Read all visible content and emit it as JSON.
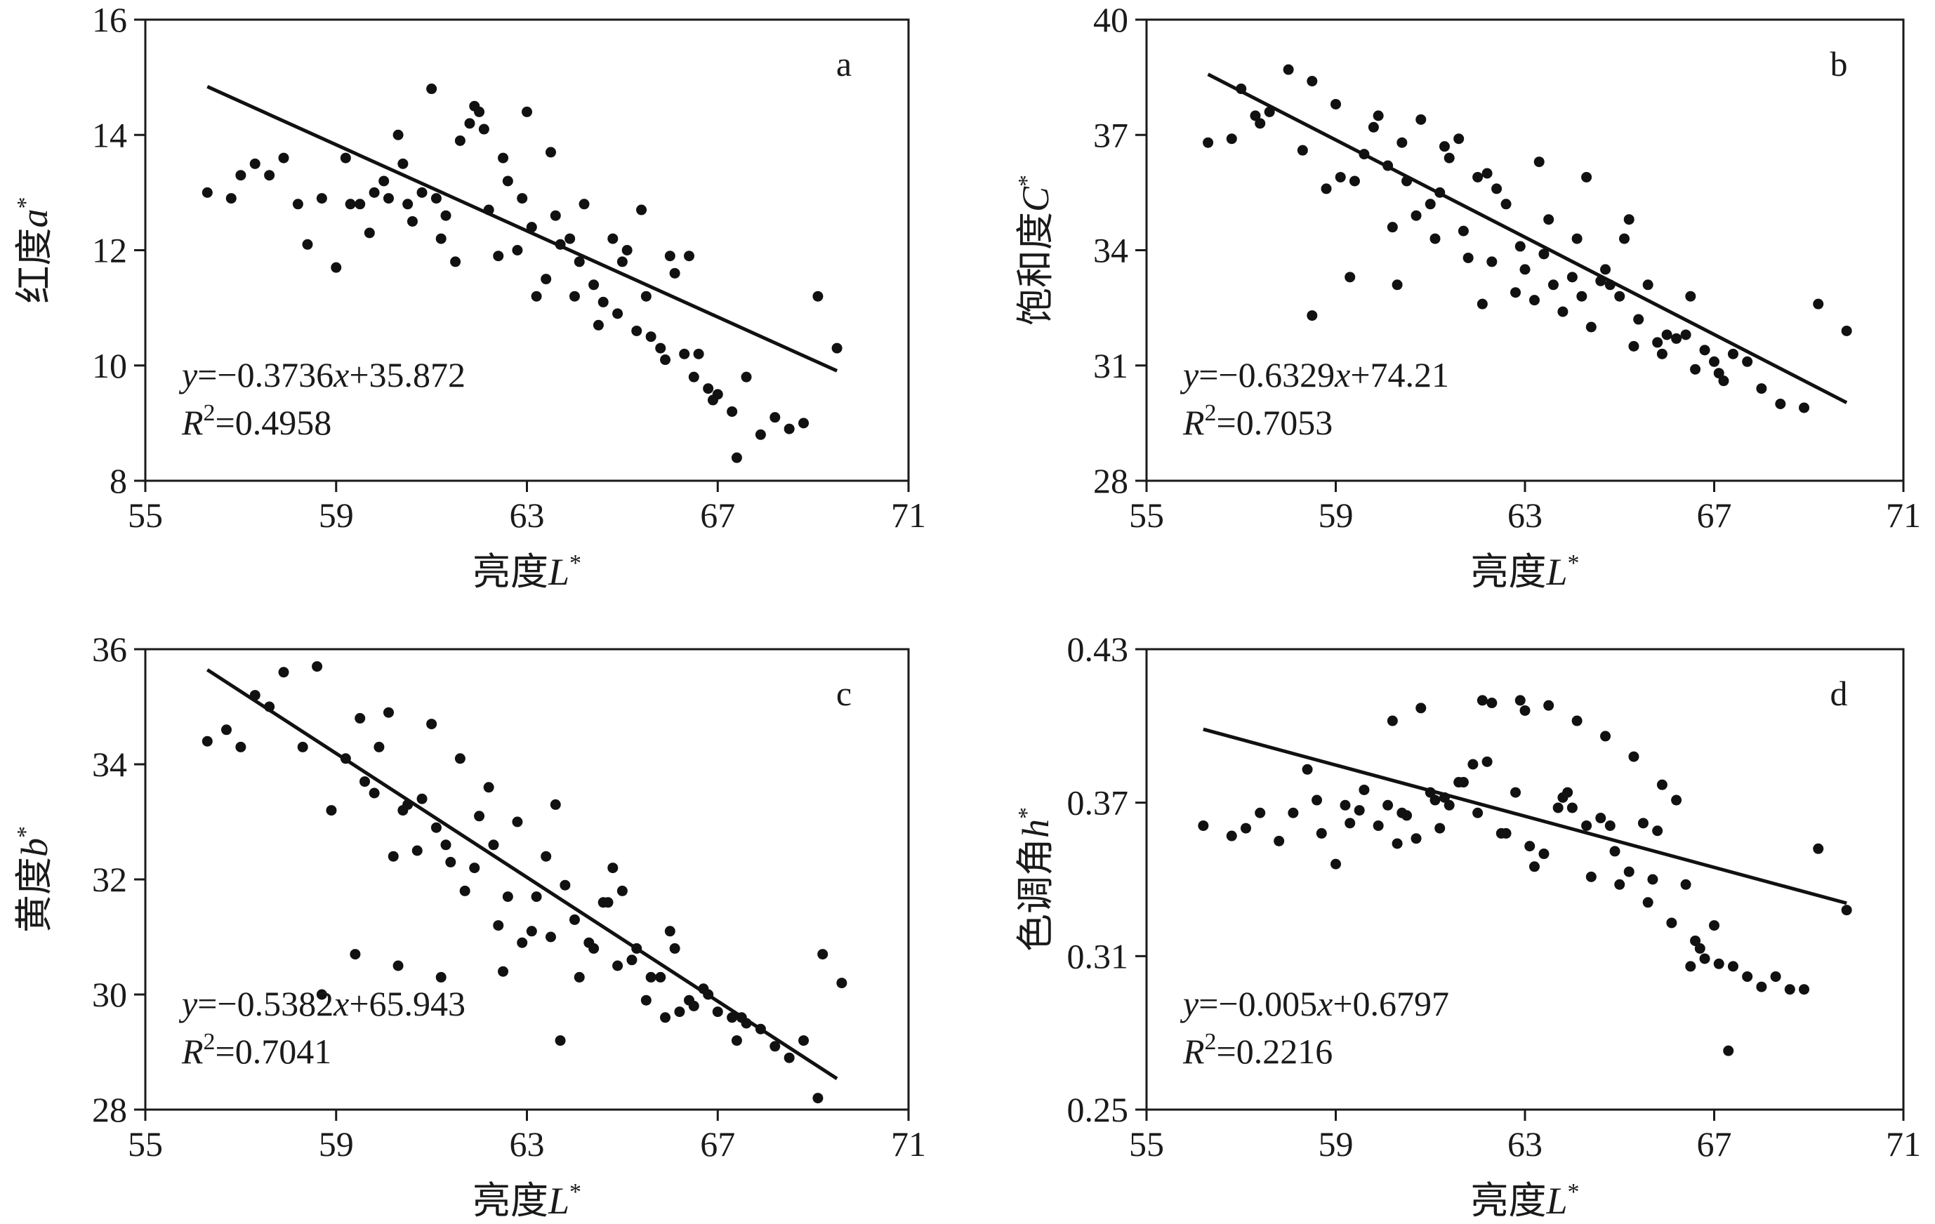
{
  "chart_data": [
    {
      "type": "scatter",
      "panel": "a",
      "xlabel": "亮度L*",
      "ylabel": "红度a*",
      "xlim": [
        55,
        71
      ],
      "ylim": [
        8,
        16
      ],
      "xticks": [
        "55",
        "59",
        "63",
        "67",
        "71"
      ],
      "yticks": [
        "8",
        "10",
        "12",
        "14",
        "16"
      ],
      "equation": "y=−0.3736x+35.872",
      "r2": "R2=0.4958",
      "fit": {
        "slope": -0.3736,
        "intercept": 35.872,
        "x": [
          56.3,
          69.5
        ]
      },
      "x": [
        56.3,
        56.8,
        57,
        57.3,
        57.6,
        57.9,
        58.2,
        58.4,
        58.7,
        59,
        59.2,
        59.5,
        59.8,
        60.1,
        60.3,
        60.5,
        60.8,
        61,
        61.3,
        61.5,
        61.8,
        62,
        62.2,
        62.5,
        62.8,
        63,
        63.2,
        63.5,
        63.7,
        64,
        64.2,
        64.5,
        64.8,
        65,
        65.3,
        65.5,
        65.8,
        66,
        66.3,
        66.5,
        66.8,
        67,
        67.3,
        67.6,
        67.9,
        68.2,
        68.5,
        68.8,
        69.1,
        69.5,
        59.3,
        60,
        60.6,
        61.1,
        61.6,
        62.1,
        62.6,
        63.1,
        63.6,
        64.1,
        64.6,
        65.1,
        65.6,
        66.1,
        66.6,
        59.7,
        60.4,
        61.2,
        61.9,
        62.4,
        62.9,
        63.4,
        63.9,
        64.4,
        64.9,
        65.4,
        65.9,
        66.4,
        66.9,
        67.4
      ],
      "y": [
        13,
        12.9,
        13.3,
        13.5,
        13.3,
        13.6,
        12.8,
        12.1,
        12.9,
        11.7,
        13.6,
        12.8,
        13,
        12.9,
        14,
        12.8,
        13,
        14.8,
        12.6,
        11.8,
        14.2,
        14.4,
        12.7,
        13.6,
        12,
        14.4,
        11.2,
        13.7,
        12.1,
        11.2,
        12.8,
        10.7,
        12.2,
        11.8,
        10.6,
        11.2,
        10.3,
        11.9,
        10.2,
        9.8,
        9.6,
        9.5,
        9.2,
        9.8,
        8.8,
        9.1,
        8.9,
        9,
        11.2,
        10.3,
        12.8,
        13.2,
        12.5,
        12.9,
        13.9,
        14.1,
        13.2,
        12.4,
        12.6,
        11.8,
        11.1,
        12,
        10.5,
        11.6,
        10.2,
        12.3,
        13.5,
        12.2,
        14.5,
        11.9,
        12.9,
        11.5,
        12.2,
        11.4,
        10.9,
        12.7,
        10.1,
        11.9,
        9.4,
        8.4
      ]
    },
    {
      "type": "scatter",
      "panel": "b",
      "xlabel": "亮度L*",
      "ylabel": "饱和度C*",
      "xlim": [
        55,
        71
      ],
      "ylim": [
        28,
        40
      ],
      "xticks": [
        "55",
        "59",
        "63",
        "67",
        "71"
      ],
      "yticks": [
        "28",
        "31",
        "34",
        "37",
        "40"
      ],
      "equation": "y=−0.6329x+74.21",
      "r2": "R2=0.7053",
      "fit": {
        "slope": -0.6329,
        "intercept": 74.21,
        "x": [
          56.3,
          69.8
        ]
      },
      "x": [
        56.3,
        56.8,
        57,
        57.3,
        57.6,
        58,
        58.3,
        58.5,
        58.8,
        59,
        59.3,
        59.6,
        59.9,
        60.2,
        60.5,
        60.8,
        61.1,
        61.4,
        61.7,
        62,
        62.3,
        62.6,
        62.9,
        63.2,
        63.5,
        63.8,
        64.1,
        64.4,
        64.7,
        65,
        65.3,
        65.6,
        65.9,
        66.2,
        66.5,
        66.8,
        67.1,
        67.4,
        67.7,
        68,
        68.4,
        68.9,
        69.2,
        69.8,
        59.4,
        60.1,
        60.7,
        61.2,
        61.8,
        62.4,
        63,
        63.6,
        64.2,
        64.8,
        65.4,
        66,
        66.6,
        67.2,
        59.8,
        60.4,
        61,
        61.6,
        62.2,
        62.8,
        63.4,
        64,
        64.6,
        65.2,
        65.8,
        66.4,
        67,
        57.4,
        58.5,
        59.1,
        60.3,
        61.3,
        62.1,
        63.3,
        64.3,
        65.1
      ],
      "y": [
        36.8,
        36.9,
        38.2,
        37.5,
        37.6,
        38.7,
        36.6,
        32.3,
        35.6,
        37.8,
        33.3,
        36.5,
        37.5,
        34.6,
        35.8,
        37.4,
        34.3,
        36.4,
        34.5,
        35.9,
        33.7,
        35.2,
        34.1,
        32.7,
        34.8,
        32.4,
        34.3,
        32,
        33.5,
        32.8,
        31.5,
        33.1,
        31.3,
        31.7,
        32.8,
        31.4,
        30.8,
        31.3,
        31.1,
        30.4,
        30,
        29.9,
        32.6,
        31.9,
        35.8,
        36.2,
        34.9,
        35.5,
        33.8,
        35.6,
        33.5,
        33.1,
        32.8,
        33.1,
        32.2,
        31.8,
        30.9,
        30.6,
        37.2,
        36.8,
        35.2,
        36.9,
        36,
        32.9,
        33.9,
        33.3,
        33.2,
        34.8,
        31.6,
        31.8,
        31.1,
        37.3,
        38.4,
        35.9,
        33.1,
        36.7,
        32.6,
        36.3,
        35.9,
        34.3
      ]
    },
    {
      "type": "scatter",
      "panel": "c",
      "xlabel": "亮度L*",
      "ylabel": "黄度b*",
      "xlim": [
        55,
        71
      ],
      "ylim": [
        28,
        36
      ],
      "xticks": [
        "55",
        "59",
        "63",
        "67",
        "71"
      ],
      "yticks": [
        "28",
        "30",
        "32",
        "34",
        "36"
      ],
      "equation": "y=−0.5382x+65.943",
      "r2": "R2=0.7041",
      "fit": {
        "slope": -0.5382,
        "intercept": 65.943,
        "x": [
          56.3,
          69.5
        ]
      },
      "x": [
        56.3,
        56.7,
        57,
        57.3,
        57.6,
        57.9,
        58.3,
        58.6,
        58.9,
        59.2,
        59.5,
        59.8,
        60.1,
        60.4,
        60.7,
        61,
        61.3,
        61.6,
        61.9,
        62.2,
        62.5,
        62.8,
        63.1,
        63.4,
        63.7,
        64,
        64.3,
        64.6,
        64.9,
        65.2,
        65.5,
        65.8,
        66.1,
        66.4,
        66.7,
        67,
        67.3,
        67.6,
        67.9,
        68.2,
        68.5,
        68.8,
        69.1,
        69.6,
        59.6,
        60.2,
        60.8,
        61.4,
        62,
        62.6,
        63.2,
        63.8,
        64.4,
        65,
        65.6,
        66.2,
        66.8,
        67.4,
        59.9,
        60.5,
        61.1,
        61.7,
        62.3,
        62.9,
        63.5,
        64.1,
        64.7,
        65.3,
        65.9,
        66.5,
        58.7,
        59.4,
        60.3,
        61.2,
        62.4,
        63.6,
        64.8,
        66,
        67.5,
        69.2
      ],
      "y": [
        34.4,
        34.6,
        34.3,
        35.2,
        35,
        35.6,
        34.3,
        35.7,
        33.2,
        34.1,
        34.8,
        33.5,
        34.9,
        33.2,
        32.5,
        34.7,
        32.6,
        34.1,
        32.2,
        33.6,
        30.4,
        33,
        31.1,
        32.4,
        29.2,
        31.3,
        30.9,
        31.6,
        30.5,
        30.6,
        29.9,
        30.3,
        30.8,
        29.9,
        30.1,
        29.7,
        29.6,
        29.5,
        29.4,
        29.1,
        28.9,
        29.2,
        28.2,
        30.2,
        33.7,
        32.4,
        33.4,
        32.3,
        33.1,
        31.7,
        31.7,
        31.9,
        30.8,
        31.8,
        30.3,
        29.7,
        30,
        29.2,
        34.3,
        33.3,
        32.9,
        31.8,
        32.6,
        30.9,
        31,
        30.3,
        31.6,
        30.8,
        29.6,
        29.8,
        30,
        30.7,
        30.5,
        30.3,
        31.2,
        33.3,
        32.2,
        31.1,
        29.6,
        30.7
      ]
    },
    {
      "type": "scatter",
      "panel": "d",
      "xlabel": "亮度L*",
      "ylabel": "色调角h*",
      "xlim": [
        55,
        71
      ],
      "ylim": [
        0.25,
        0.43
      ],
      "xticks": [
        "55",
        "59",
        "63",
        "67",
        "71"
      ],
      "yticks": [
        "0.25",
        "0.31",
        "0.37",
        "0.43"
      ],
      "equation": "y=−0.005x+0.6797",
      "r2": "R2=0.2216",
      "fit": {
        "slope": -0.005,
        "intercept": 0.6797,
        "x": [
          56.2,
          69.8
        ]
      },
      "x": [
        56.2,
        56.8,
        57.1,
        57.4,
        57.8,
        58.1,
        58.4,
        58.7,
        59,
        59.3,
        59.6,
        59.9,
        60.2,
        60.5,
        60.8,
        61.1,
        61.4,
        61.7,
        62,
        62.3,
        62.6,
        62.9,
        63.2,
        63.5,
        63.8,
        64.1,
        64.4,
        64.7,
        65,
        65.3,
        65.6,
        65.9,
        66.2,
        66.5,
        66.8,
        67.1,
        67.4,
        67.7,
        68,
        68.3,
        68.6,
        68.9,
        69.2,
        69.8,
        60.4,
        61,
        61.6,
        62.2,
        62.8,
        63.4,
        64,
        64.6,
        65.2,
        65.8,
        66.4,
        67,
        59.5,
        60.1,
        60.7,
        61.3,
        61.9,
        62.5,
        63.1,
        63.7,
        64.3,
        64.9,
        65.5,
        66.1,
        66.7,
        67.3,
        58.6,
        59.2,
        60.3,
        61.2,
        62.1,
        63,
        63.9,
        64.8,
        65.7,
        66.6
      ],
      "y": [
        0.361,
        0.357,
        0.36,
        0.366,
        0.355,
        0.366,
        0.383,
        0.358,
        0.346,
        0.362,
        0.375,
        0.361,
        0.402,
        0.365,
        0.407,
        0.371,
        0.369,
        0.378,
        0.366,
        0.409,
        0.358,
        0.41,
        0.345,
        0.408,
        0.372,
        0.402,
        0.341,
        0.396,
        0.338,
        0.388,
        0.331,
        0.377,
        0.371,
        0.306,
        0.309,
        0.307,
        0.306,
        0.302,
        0.298,
        0.302,
        0.297,
        0.297,
        0.352,
        0.328,
        0.366,
        0.374,
        0.378,
        0.386,
        0.374,
        0.35,
        0.368,
        0.364,
        0.343,
        0.359,
        0.338,
        0.322,
        0.367,
        0.369,
        0.356,
        0.372,
        0.385,
        0.358,
        0.353,
        0.368,
        0.361,
        0.351,
        0.362,
        0.323,
        0.313,
        0.273,
        0.371,
        0.369,
        0.354,
        0.36,
        0.41,
        0.406,
        0.374,
        0.361,
        0.34,
        0.316
      ]
    }
  ]
}
